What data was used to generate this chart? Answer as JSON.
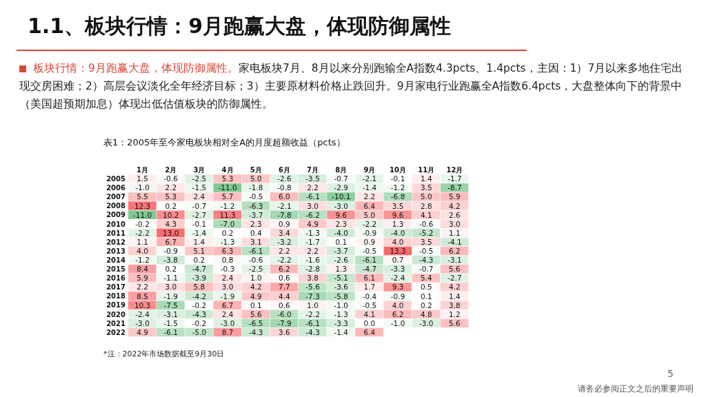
{
  "chart_data": {
    "type": "heatmap",
    "title": "1.1、板块行情：9月跑赢大盘，体现防御属性",
    "subtitle": "板块行情：9月跑赢大盘，体现防御属性。",
    "annotations": [
      "家电板块7月、8月以来分别跑输全A指数4.3pcts、1.4pcts，主因：1）7月以来多地住宅出现交房困难；2）高层会议淡化全年经济目标；3）主要原材料价格止跌回升。9月家电行业跑赢全A指数6.4pcts，大盘整体向下的背景中（美国超预期加息）体现出低估值板块的防御属性。",
      "表1：2005年至今家电板块相对全A的月度超额收益（pcts）",
      "*注：2022年市场数据截至9月30日",
      "5",
      "请务必参阅正文之后的重要声明"
    ],
    "categories": [
      "1月",
      "2月",
      "3月",
      "4月",
      "5月",
      "6月",
      "7月",
      "8月",
      "9月",
      "10月",
      "11月",
      "12月"
    ],
    "y_categories": [
      "2005",
      "2006",
      "2007",
      "2008",
      "2009",
      "2010",
      "2011",
      "2012",
      "2013",
      "2014",
      "2015",
      "2016",
      "2017",
      "2018",
      "2019",
      "2020",
      "2021",
      "2022"
    ],
    "colors": [
      "#63be7b",
      "#ffffff",
      "#f8696b"
    ],
    "cell_labels": [
      [
        "1.5",
        "-0.6",
        "-2.5",
        "5.3",
        "5.0",
        "-2.6",
        "-3.5",
        "-0.7",
        "-2.1",
        "-0.1",
        "1.4",
        "-1.7"
      ],
      [
        "-1.0",
        "2.2",
        "-1.5",
        "-11.0",
        "-1.8",
        "-0.8",
        "2.2",
        "-2.9",
        "-1.4",
        "-1.2",
        "3.5",
        "-8.7"
      ],
      [
        "5.5",
        "5.3",
        "2.4",
        "5.7",
        "-0.5",
        "6.0",
        "-6.1",
        "-10.1",
        "2.2",
        "-6.8",
        "5.0",
        "5.9"
      ],
      [
        "12.3",
        "0.2",
        "-0.7",
        "-1.2",
        "-6.3",
        "-2.1",
        "3.0",
        "-3.0",
        "6.4",
        "3.5",
        "2.8",
        "4.2"
      ],
      [
        "-11.0",
        "10.2",
        "-2.7",
        "11.3",
        "-3.7",
        "-7.8",
        "-6.2",
        "9.6",
        "5.0",
        "9.6",
        "4.1",
        "2.6"
      ],
      [
        "-0.2",
        "4.3",
        "-0.1",
        "-7.0",
        "2.3",
        "0.9",
        "4.9",
        "2.3",
        "-2.2",
        "1.3",
        "-0.6",
        "3.0"
      ],
      [
        "-2.2",
        "13.0",
        "-1.4",
        "0.2",
        "0.4",
        "3.4",
        "-1.3",
        "-4.0",
        "-0.9",
        "-4.0",
        "-5.2",
        "1.1"
      ],
      [
        "1.1",
        "6.7",
        "1.4",
        "-1.3",
        "3.1",
        "-3.2",
        "-1.7",
        "0.1",
        "0.9",
        "4.0",
        "3.5",
        "-4.1"
      ],
      [
        "4.0",
        "-0.9",
        "5.1",
        "6.3",
        "-6.1",
        "2.2",
        "2.2",
        "-3.7",
        "-0.5",
        "13.3",
        "-0.5",
        "6.2"
      ],
      [
        "-1.2",
        "-3.8",
        "0.2",
        "0.8",
        "-0.6",
        "-2.2",
        "-1.6",
        "-2.6",
        "-6.1",
        "0.7",
        "-4.3",
        "-3.1"
      ],
      [
        "8.4",
        "0.2",
        "-4.7",
        "-0.3",
        "-2.5",
        "6.2",
        "-2.8",
        "1.3",
        "-4.7",
        "-3.3",
        "-0.7",
        "5.6"
      ],
      [
        "5.9",
        "-1.1",
        "-3.9",
        "2.4",
        "1.0",
        "0.6",
        "3.8",
        "-5.1",
        "6.1",
        "-2.4",
        "5.4",
        "-2.7"
      ],
      [
        "2.2",
        "3.0",
        "5.8",
        "3.0",
        "4.2",
        "7.7",
        "-5.6",
        "-3.6",
        "1.7",
        "9.3",
        "0.5",
        "4.2"
      ],
      [
        "8.5",
        "-1.9",
        "-4.2",
        "-1.9",
        "4.9",
        "4.4",
        "-7.3",
        "-5.8",
        "-0.4",
        "-0.9",
        "0.1",
        "1.4"
      ],
      [
        "10.3",
        "-7.5",
        "-0.2",
        "6.7",
        "0.1",
        "0.6",
        "1.0",
        "-1.0",
        "-0.5",
        "4.0",
        "0.2",
        "3.8"
      ],
      [
        "-2.4",
        "-3.1",
        "-4.3",
        "2.4",
        "5.6",
        "-6.0",
        "-2.2",
        "-1.3",
        "4.1",
        "6.2",
        "4.8",
        "1.2"
      ],
      [
        "-3.0",
        "-1.5",
        "-0.2",
        "-3.0",
        "-6.5",
        "-7.9",
        "-6.1",
        "-3.3",
        "0.0",
        "-1.0",
        "-3.0",
        "5.6"
      ],
      [
        "4.9",
        "-6.1",
        "-5.0",
        "8.7",
        "-4.3",
        "3.6",
        "-4.3",
        "-1.4",
        "6.4",
        null,
        null,
        null
      ]
    ],
    "cells": [
      [
        1.5,
        -0.6,
        -2.5,
        5.3,
        5.0,
        -2.6,
        -3.5,
        -0.7,
        -2.1,
        -0.1,
        1.4,
        -1.7
      ],
      [
        -1.0,
        2.2,
        -1.5,
        -11.0,
        -1.8,
        -0.8,
        2.2,
        -2.9,
        -1.4,
        -1.2,
        3.5,
        -8.7
      ],
      [
        5.5,
        5.3,
        2.4,
        5.7,
        -0.5,
        6.0,
        -6.1,
        -10.1,
        2.2,
        -6.8,
        5.0,
        5.9
      ],
      [
        12.3,
        0.2,
        -0.7,
        -1.2,
        -6.3,
        -2.1,
        3.0,
        -3.0,
        6.4,
        3.5,
        2.8,
        4.2
      ],
      [
        -11.0,
        10.2,
        -2.7,
        11.3,
        -3.7,
        -7.8,
        -6.2,
        9.6,
        5.0,
        9.6,
        4.1,
        2.6
      ],
      [
        -0.2,
        4.3,
        -0.1,
        -7.0,
        2.3,
        0.9,
        4.9,
        2.3,
        -2.2,
        1.3,
        -0.6,
        3.0
      ],
      [
        -2.2,
        13.0,
        -1.4,
        0.2,
        0.4,
        3.4,
        -1.3,
        -4.0,
        -0.9,
        -4.0,
        -5.2,
        1.1
      ],
      [
        1.1,
        6.7,
        1.4,
        -1.3,
        3.1,
        -3.2,
        -1.7,
        0.1,
        0.9,
        4.0,
        3.5,
        -4.1
      ],
      [
        4.0,
        -0.9,
        5.1,
        6.3,
        -6.1,
        2.2,
        2.2,
        -3.7,
        -0.5,
        13.3,
        -0.5,
        6.2
      ],
      [
        -1.2,
        -3.8,
        0.2,
        0.8,
        -0.6,
        -2.2,
        -1.6,
        -2.6,
        -6.1,
        0.7,
        -4.3,
        -3.1
      ],
      [
        8.4,
        0.2,
        -4.7,
        -0.3,
        -2.5,
        6.2,
        -2.8,
        1.3,
        -4.7,
        -3.3,
        -0.7,
        5.6
      ],
      [
        5.9,
        -1.1,
        -3.9,
        2.4,
        1.0,
        0.6,
        3.8,
        -5.1,
        6.1,
        -2.4,
        5.4,
        -2.7
      ],
      [
        2.2,
        3.0,
        5.8,
        3.0,
        4.2,
        7.7,
        -5.6,
        -3.6,
        1.7,
        9.3,
        0.5,
        4.2
      ],
      [
        8.5,
        -1.9,
        -4.2,
        -1.9,
        4.9,
        4.4,
        -7.3,
        -5.8,
        -0.4,
        -0.9,
        0.1,
        1.4
      ],
      [
        10.3,
        -7.5,
        -0.2,
        6.7,
        0.1,
        0.6,
        1.0,
        -1.0,
        -0.5,
        4.0,
        0.2,
        3.8
      ],
      [
        -2.4,
        -3.1,
        -4.3,
        2.4,
        5.6,
        -6.0,
        -2.2,
        -1.3,
        4.1,
        6.2,
        4.8,
        1.2
      ],
      [
        -3.0,
        -1.5,
        -0.2,
        -3.0,
        -6.5,
        -7.9,
        -6.1,
        -3.3,
        0.0,
        -1.0,
        -3.0,
        5.6
      ],
      [
        4.9,
        -6.1,
        -5.0,
        8.7,
        -4.3,
        3.6,
        -4.3,
        -1.4,
        6.4,
        null,
        null,
        null
      ]
    ]
  }
}
